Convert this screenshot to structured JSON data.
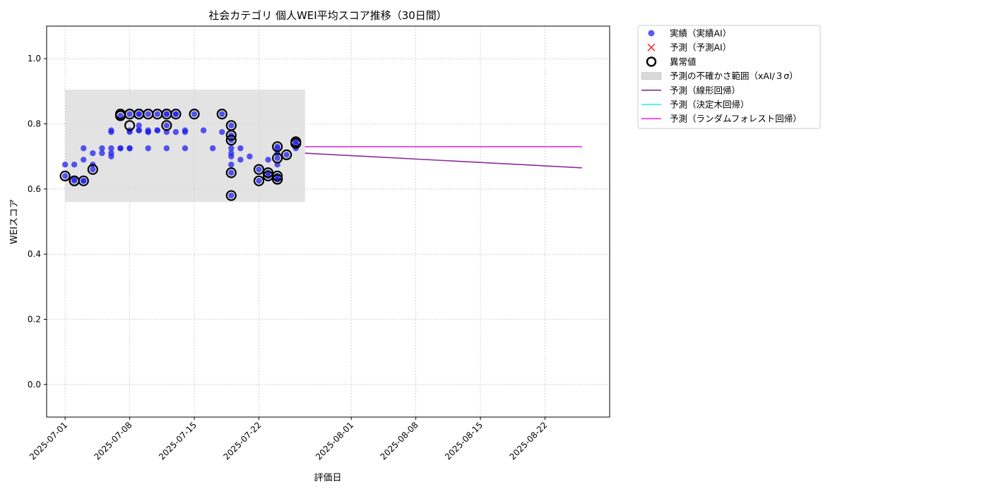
{
  "chart_data": {
    "type": "scatter",
    "title": "社会カテゴリ 個人WEI平均スコア推移（30日間）",
    "xlabel": "評価日",
    "ylabel": "WEIスコア",
    "x_range": [
      "2025-06-29",
      "2025-08-29"
    ],
    "ylim": [
      -0.1,
      1.1
    ],
    "x_ticks": [
      "2025-07-01",
      "2025-07-08",
      "2025-07-15",
      "2025-07-22",
      "2025-08-01",
      "2025-08-08",
      "2025-08-15",
      "2025-08-22"
    ],
    "y_ticks": [
      "0.0",
      "0.2",
      "0.4",
      "0.6",
      "0.8",
      "1.0"
    ],
    "grid": true,
    "legend_position": "outside-right",
    "legend": [
      {
        "label": "実績（実績AI）",
        "kind": "dot",
        "color": "#3333ee"
      },
      {
        "label": "予測（予測AI）",
        "kind": "cross",
        "color": "#ee3333"
      },
      {
        "label": "異常値",
        "kind": "ring",
        "color": "#000000"
      },
      {
        "label": "予測の不確かさ範囲（xAI/３σ）",
        "kind": "band",
        "color": "#d9d9d9"
      },
      {
        "label": "予測（線形回帰）",
        "kind": "line",
        "color": "#8b2d99"
      },
      {
        "label": "予測（決定木回帰）",
        "kind": "line",
        "color": "#22eeee"
      },
      {
        "label": "予測（ランダムフォレスト回帰）",
        "kind": "line",
        "color": "#e633e6"
      }
    ],
    "uncertainty_band": {
      "x_start": "2025-07-01",
      "x_end": "2025-07-27",
      "y_low": 0.56,
      "y_high": 0.905,
      "color": "#d9d9d9"
    },
    "series": [
      {
        "name": "実績（実績AI）",
        "color": "#2222ee",
        "points": [
          [
            "2025-07-01",
            0.64
          ],
          [
            "2025-07-01",
            0.675
          ],
          [
            "2025-07-02",
            0.63
          ],
          [
            "2025-07-02",
            0.625
          ],
          [
            "2025-07-02",
            0.675
          ],
          [
            "2025-07-03",
            0.625
          ],
          [
            "2025-07-03",
            0.625
          ],
          [
            "2025-07-03",
            0.69
          ],
          [
            "2025-07-03",
            0.725
          ],
          [
            "2025-07-04",
            0.66
          ],
          [
            "2025-07-04",
            0.675
          ],
          [
            "2025-07-04",
            0.71
          ],
          [
            "2025-07-05",
            0.71
          ],
          [
            "2025-07-05",
            0.725
          ],
          [
            "2025-07-06",
            0.71
          ],
          [
            "2025-07-06",
            0.7
          ],
          [
            "2025-07-06",
            0.775
          ],
          [
            "2025-07-06",
            0.78
          ],
          [
            "2025-07-06",
            0.725
          ],
          [
            "2025-07-07",
            0.725
          ],
          [
            "2025-07-07",
            0.825
          ],
          [
            "2025-07-07",
            0.725
          ],
          [
            "2025-07-08",
            0.725
          ],
          [
            "2025-07-08",
            0.83
          ],
          [
            "2025-07-08",
            0.775
          ],
          [
            "2025-07-08",
            0.725
          ],
          [
            "2025-07-08",
            0.78
          ],
          [
            "2025-07-09",
            0.83
          ],
          [
            "2025-07-09",
            0.78
          ],
          [
            "2025-07-09",
            0.795
          ],
          [
            "2025-07-09",
            0.78
          ],
          [
            "2025-07-09",
            0.83
          ],
          [
            "2025-07-10",
            0.775
          ],
          [
            "2025-07-10",
            0.725
          ],
          [
            "2025-07-10",
            0.83
          ],
          [
            "2025-07-10",
            0.775
          ],
          [
            "2025-07-10",
            0.78
          ],
          [
            "2025-07-11",
            0.78
          ],
          [
            "2025-07-11",
            0.83
          ],
          [
            "2025-07-11",
            0.78
          ],
          [
            "2025-07-12",
            0.725
          ],
          [
            "2025-07-12",
            0.83
          ],
          [
            "2025-07-12",
            0.795
          ],
          [
            "2025-07-12",
            0.83
          ],
          [
            "2025-07-12",
            0.775
          ],
          [
            "2025-07-13",
            0.775
          ],
          [
            "2025-07-13",
            0.83
          ],
          [
            "2025-07-13",
            0.83
          ],
          [
            "2025-07-14",
            0.775
          ],
          [
            "2025-07-14",
            0.78
          ],
          [
            "2025-07-14",
            0.725
          ],
          [
            "2025-07-15",
            0.83
          ],
          [
            "2025-07-16",
            0.78
          ],
          [
            "2025-07-17",
            0.725
          ],
          [
            "2025-07-18",
            0.83
          ],
          [
            "2025-07-18",
            0.775
          ],
          [
            "2025-07-19",
            0.675
          ],
          [
            "2025-07-19",
            0.58
          ],
          [
            "2025-07-19",
            0.75
          ],
          [
            "2025-07-19",
            0.765
          ],
          [
            "2025-07-19",
            0.725
          ],
          [
            "2025-07-19",
            0.71
          ],
          [
            "2025-07-19",
            0.7
          ],
          [
            "2025-07-19",
            0.65
          ],
          [
            "2025-07-19",
            0.795
          ],
          [
            "2025-07-20",
            0.725
          ],
          [
            "2025-07-20",
            0.69
          ],
          [
            "2025-07-21",
            0.7
          ],
          [
            "2025-07-22",
            0.66
          ],
          [
            "2025-07-22",
            0.625
          ],
          [
            "2025-07-23",
            0.64
          ],
          [
            "2025-07-23",
            0.69
          ],
          [
            "2025-07-23",
            0.65
          ],
          [
            "2025-07-24",
            0.64
          ],
          [
            "2025-07-24",
            0.63
          ],
          [
            "2025-07-24",
            0.71
          ],
          [
            "2025-07-24",
            0.725
          ],
          [
            "2025-07-24",
            0.675
          ],
          [
            "2025-07-24",
            0.695
          ],
          [
            "2025-07-24",
            0.63
          ],
          [
            "2025-07-24",
            0.73
          ],
          [
            "2025-07-25",
            0.705
          ],
          [
            "2025-07-26",
            0.725
          ],
          [
            "2025-07-26",
            0.745
          ],
          [
            "2025-07-26",
            0.74
          ]
        ]
      },
      {
        "name": "異常値",
        "color": "#000000",
        "points": [
          [
            "2025-07-01",
            0.64
          ],
          [
            "2025-07-02",
            0.625
          ],
          [
            "2025-07-02",
            0.625
          ],
          [
            "2025-07-03",
            0.625
          ],
          [
            "2025-07-04",
            0.66
          ],
          [
            "2025-07-07",
            0.825
          ],
          [
            "2025-07-07",
            0.83
          ],
          [
            "2025-07-08",
            0.83
          ],
          [
            "2025-07-08",
            0.795
          ],
          [
            "2025-07-09",
            0.83
          ],
          [
            "2025-07-09",
            0.83
          ],
          [
            "2025-07-10",
            0.83
          ],
          [
            "2025-07-11",
            0.83
          ],
          [
            "2025-07-12",
            0.83
          ],
          [
            "2025-07-12",
            0.795
          ],
          [
            "2025-07-12",
            0.83
          ],
          [
            "2025-07-13",
            0.83
          ],
          [
            "2025-07-15",
            0.83
          ],
          [
            "2025-07-18",
            0.83
          ],
          [
            "2025-07-19",
            0.58
          ],
          [
            "2025-07-19",
            0.75
          ],
          [
            "2025-07-19",
            0.765
          ],
          [
            "2025-07-19",
            0.65
          ],
          [
            "2025-07-19",
            0.795
          ],
          [
            "2025-07-22",
            0.66
          ],
          [
            "2025-07-22",
            0.625
          ],
          [
            "2025-07-23",
            0.64
          ],
          [
            "2025-07-23",
            0.65
          ],
          [
            "2025-07-24",
            0.63
          ],
          [
            "2025-07-24",
            0.64
          ],
          [
            "2025-07-24",
            0.695
          ],
          [
            "2025-07-24",
            0.63
          ],
          [
            "2025-07-24",
            0.73
          ],
          [
            "2025-07-25",
            0.705
          ],
          [
            "2025-07-26",
            0.74
          ],
          [
            "2025-07-26",
            0.745
          ]
        ]
      },
      {
        "name": "予測（線形回帰）",
        "color": "#8b2d99",
        "points": [
          [
            "2025-07-27",
            0.71
          ],
          [
            "2025-08-26",
            0.665
          ]
        ]
      },
      {
        "name": "予測（決定木回帰）",
        "color": "#22eeee",
        "points": [
          [
            "2025-07-27",
            0.73
          ],
          [
            "2025-08-26",
            0.73
          ]
        ]
      },
      {
        "name": "予測（ランダムフォレスト回帰）",
        "color": "#e633e6",
        "points": [
          [
            "2025-07-27",
            0.73
          ],
          [
            "2025-08-26",
            0.73
          ]
        ]
      }
    ]
  }
}
